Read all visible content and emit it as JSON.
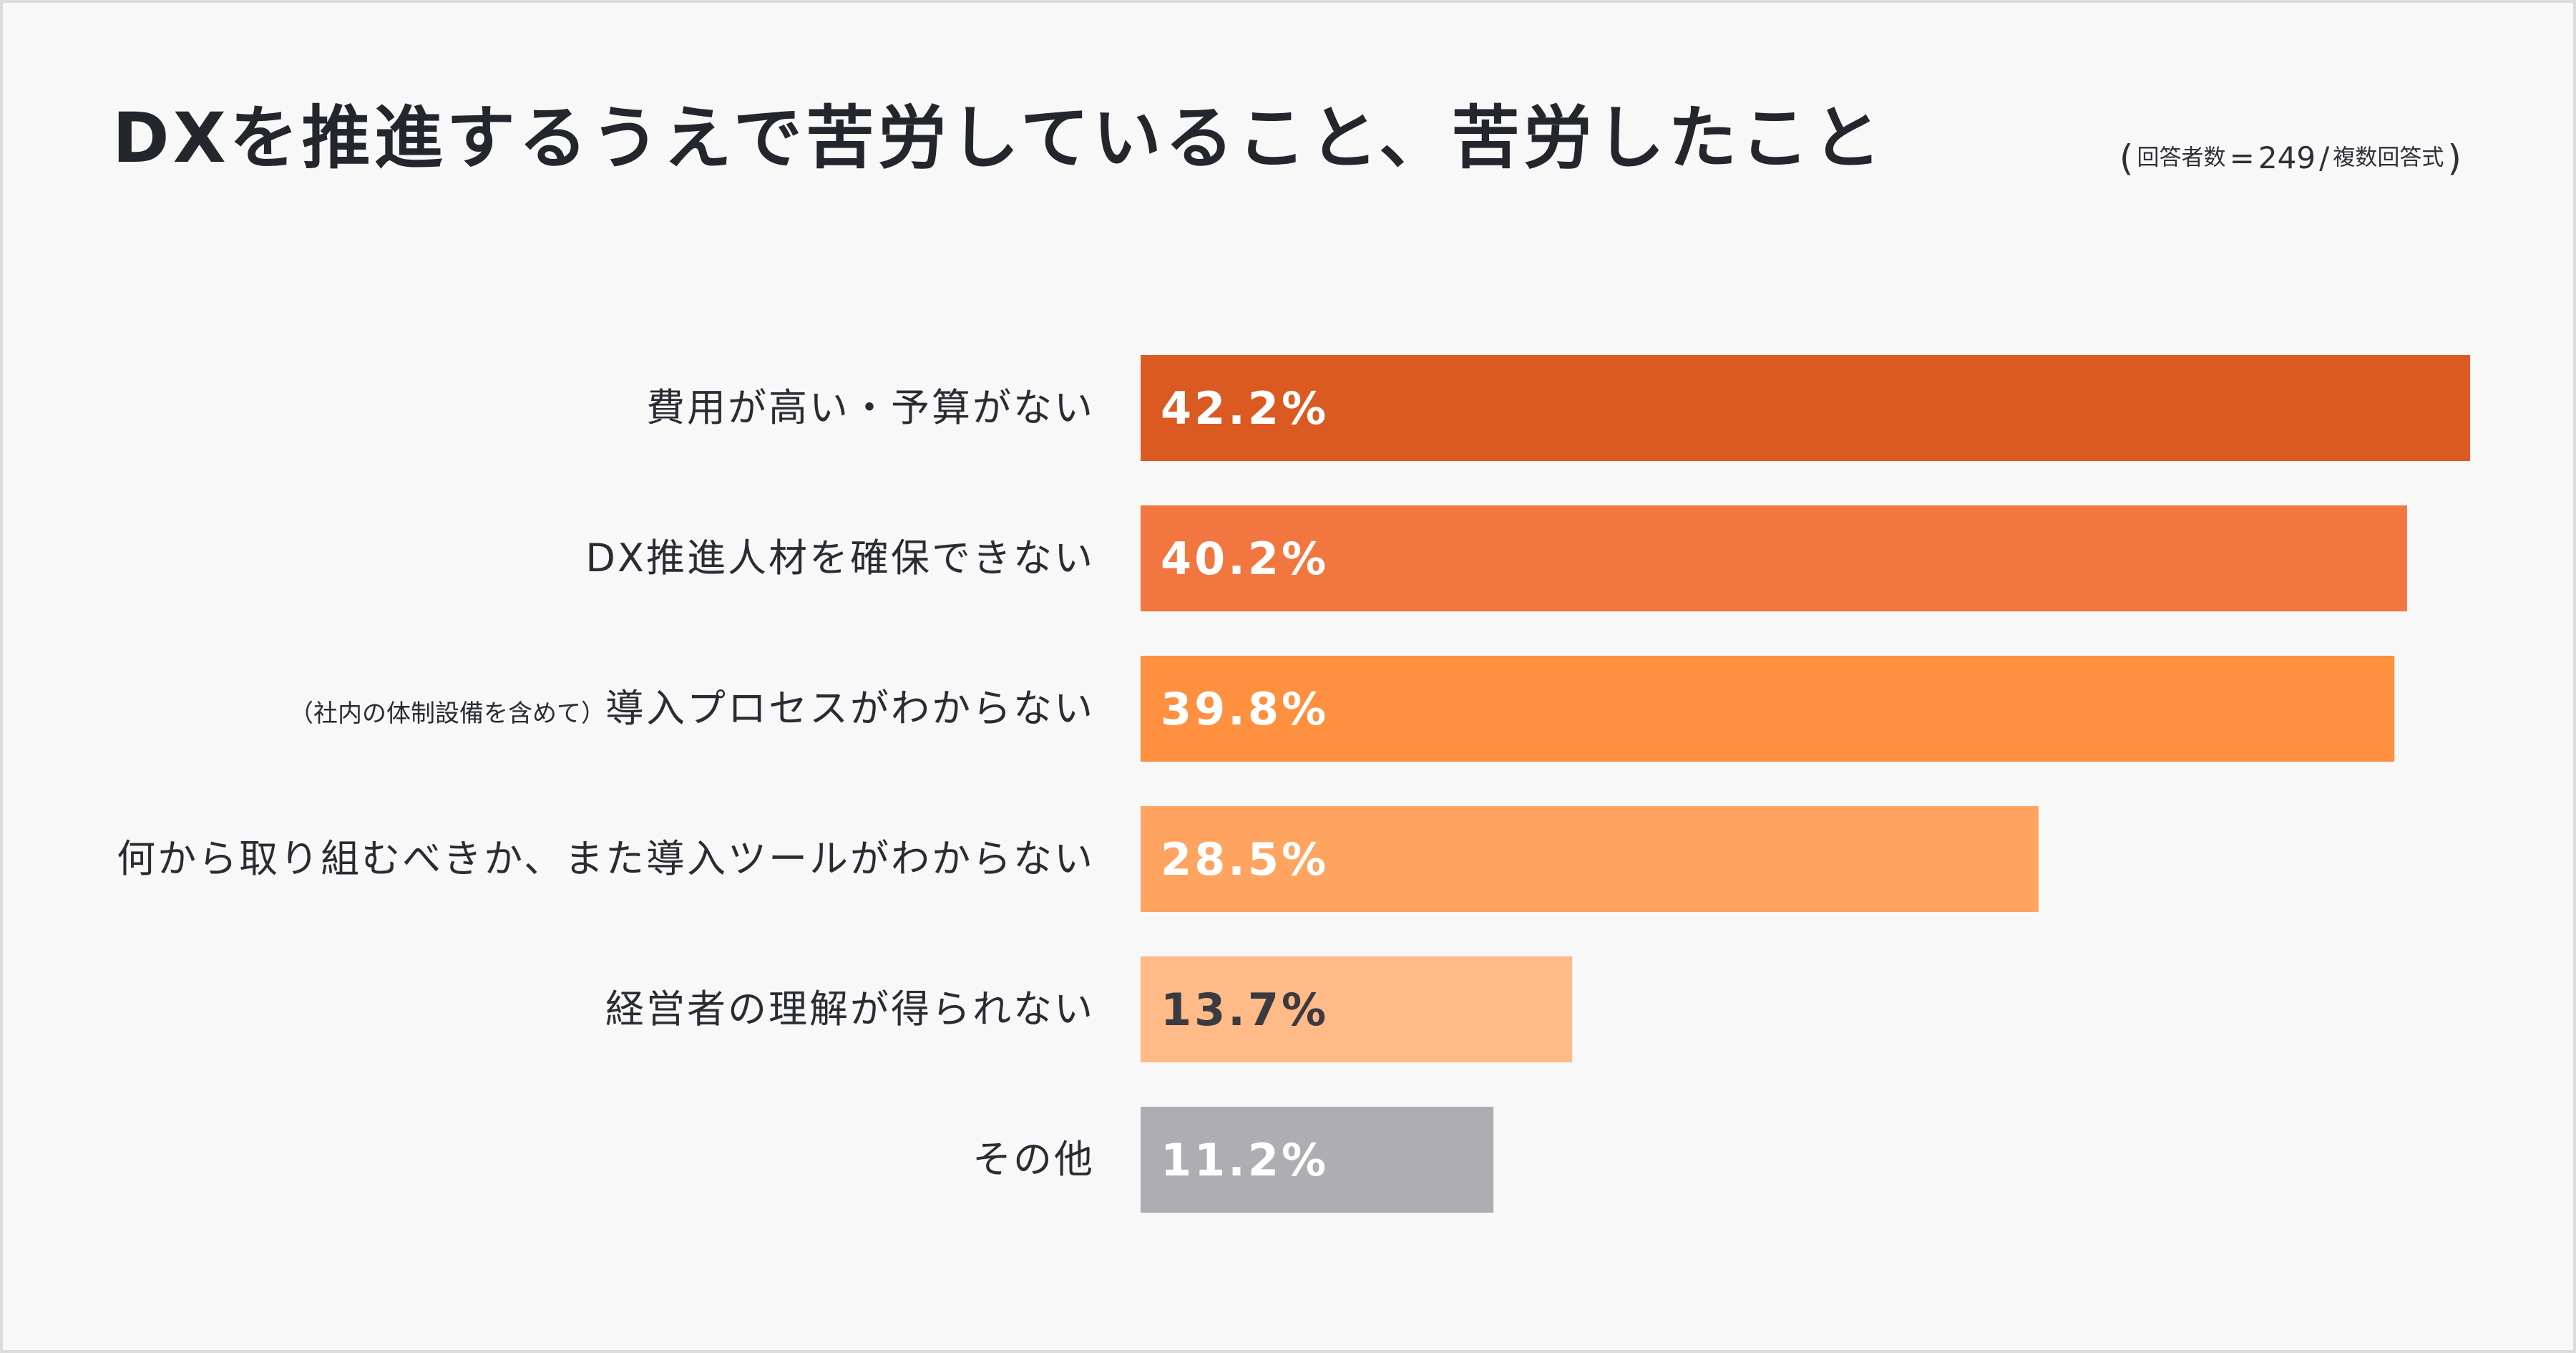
{
  "chart_data": {
    "type": "bar",
    "orientation": "horizontal",
    "title": "DXを推進するうえで苦労していること、苦労したこと",
    "note": {
      "open_paren": "(",
      "respondents_label": "回答者数",
      "equals": "=",
      "count": "249",
      "slash": "/",
      "answer_type": "複数回答式",
      "close_paren": ")"
    },
    "categories": [
      {
        "prefix": "",
        "label": "費用が高い・予算がない"
      },
      {
        "prefix": "",
        "label": "DX推進人材を確保できない"
      },
      {
        "prefix": "（社内の体制設備を含めて）",
        "label": "導入プロセスがわからない"
      },
      {
        "prefix": "",
        "label": "何から取り組むべきか、また導入ツールがわからない"
      },
      {
        "prefix": "",
        "label": "経営者の理解が得られない"
      },
      {
        "prefix": "",
        "label": "その他"
      }
    ],
    "values": [
      42.2,
      40.2,
      39.8,
      28.5,
      13.7,
      11.2
    ],
    "value_labels": [
      "42.2%",
      "40.2%",
      "39.8%",
      "28.5%",
      "13.7%",
      "11.2%"
    ],
    "xlim": [
      0,
      42.2
    ],
    "unit": "%",
    "grid": false,
    "legend": "none",
    "colors": [
      "#db5a22",
      "#f27640",
      "#ff9040",
      "#ffa460",
      "#ffba88",
      "#aeaeb2"
    ],
    "value_label_colors": [
      "#ffffff",
      "#ffffff",
      "#ffffff",
      "#ffffff",
      "#3a3a40",
      "#ffffff"
    ],
    "category_label_color": "#2a2c34"
  }
}
